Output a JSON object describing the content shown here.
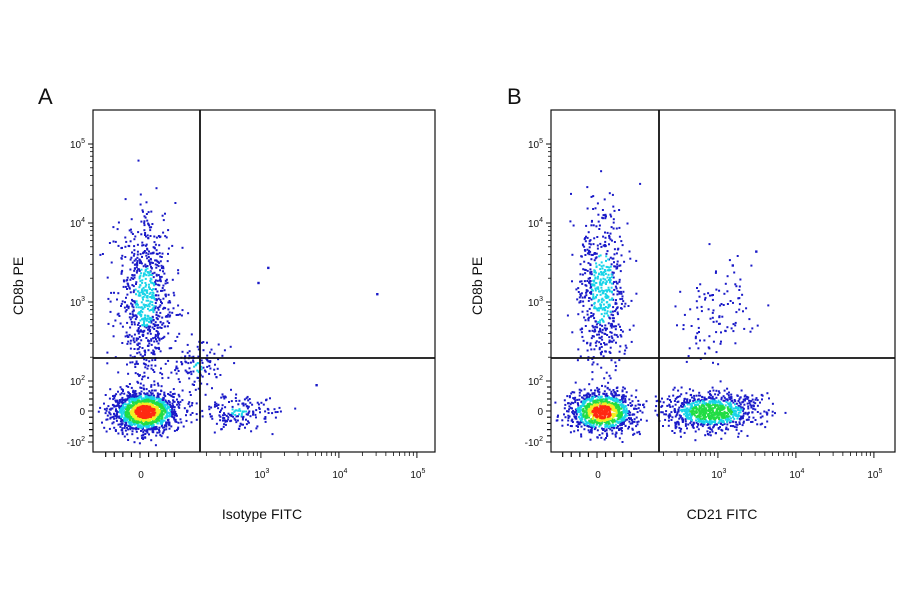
{
  "chart_data": [
    {
      "panel": "A",
      "type": "scatter",
      "xlabel": "Isotype FITC",
      "ylabel": "CD8b PE",
      "x_scale": "biexponential",
      "y_scale": "biexponential",
      "xlim": [
        -100,
        100000
      ],
      "ylim": [
        -100,
        250000
      ],
      "x_ticks": [
        "0",
        "10^3",
        "10^4",
        "10^5"
      ],
      "y_ticks": [
        "-10^2",
        "0",
        "10^2",
        "10^3",
        "10^4",
        "10^5"
      ],
      "quadrant_gate": {
        "x": 350,
        "y": 200
      },
      "populations": [
        {
          "name": "double-negative",
          "x_center": 10,
          "y_center": 0,
          "share": 0.62,
          "colormap": "density"
        },
        {
          "name": "CD8b+",
          "x_center": 10,
          "y_center": 1200,
          "share": 0.3,
          "colormap": "density"
        },
        {
          "name": "low FITC tail",
          "x_center": 500,
          "y_center": 0,
          "share": 0.08,
          "colormap": "density"
        }
      ],
      "outliers": [
        [
          30000,
          1300
        ],
        [
          1200,
          2800
        ],
        [
          900,
          1800
        ],
        [
          5000,
          90
        ]
      ],
      "grid": false,
      "legend": "none"
    },
    {
      "panel": "B",
      "type": "scatter",
      "xlabel": "CD21 FITC",
      "ylabel": "CD8b PE",
      "x_scale": "biexponential",
      "y_scale": "biexponential",
      "xlim": [
        -100,
        100000
      ],
      "ylim": [
        -100,
        250000
      ],
      "x_ticks": [
        "0",
        "10^3",
        "10^4",
        "10^5"
      ],
      "y_ticks": [
        "-10^2",
        "0",
        "10^2",
        "10^3",
        "10^4",
        "10^5"
      ],
      "quadrant_gate": {
        "x": 350,
        "y": 200
      },
      "populations": [
        {
          "name": "double-negative",
          "x_center": 10,
          "y_center": 0,
          "share": 0.42,
          "colormap": "density"
        },
        {
          "name": "CD21+ (B cells)",
          "x_center": 800,
          "y_center": 0,
          "share": 0.3,
          "colormap": "density"
        },
        {
          "name": "CD8b+",
          "x_center": 10,
          "y_center": 1500,
          "share": 0.22,
          "colormap": "density"
        },
        {
          "name": "CD21+ CD8b+",
          "x_center": 900,
          "y_center": 700,
          "share": 0.06,
          "colormap": "density"
        }
      ],
      "outliers": [
        [
          3000,
          4500
        ],
        [
          1500,
          3000
        ]
      ],
      "grid": false,
      "legend": "none"
    }
  ],
  "colors": {
    "density_low": "#1a1ac8",
    "density_mid_low": "#18d4e8",
    "density_mid": "#22dd44",
    "density_mid_high": "#f2ee22",
    "density_high": "#ff2a12",
    "axis": "#111111"
  }
}
